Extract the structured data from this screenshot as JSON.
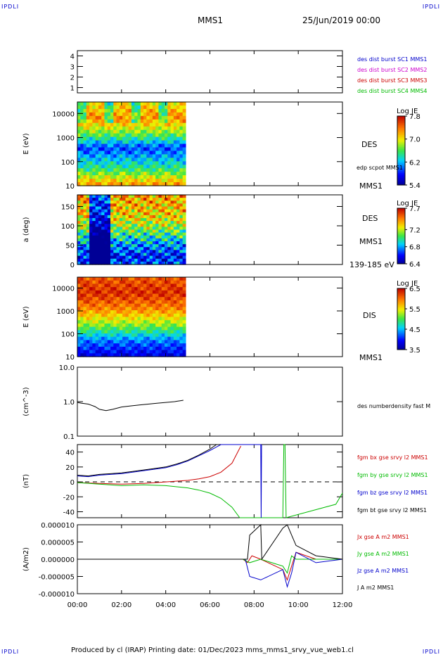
{
  "corner_label": "IPDLI",
  "header": {
    "spacecraft": "MMS1",
    "date": "25/Jun/2019 00:00"
  },
  "footer": {
    "text": "Produced by cl (IRAP)   Printing date: 01/Dec/2023   mms_mms1_srvy_vue_web1.cl"
  },
  "colors": {
    "blue": "#0000cc",
    "magenta": "#cc00cc",
    "red": "#cc0000",
    "green": "#00bb00",
    "black": "#000000"
  },
  "chart_data": [
    {
      "type": "line",
      "title": "spacecraft legend",
      "ylim": [
        0.5,
        4.5
      ],
      "yticks": [
        "1",
        "2",
        "3",
        "4"
      ],
      "legend": [
        {
          "name": "des dist burst SC1 MMS1",
          "color": "#0000cc"
        },
        {
          "name": "des dist burst SC2 MMS2",
          "color": "#cc00cc"
        },
        {
          "name": "des dist burst SC3 MMS3",
          "color": "#cc0000"
        },
        {
          "name": "des dist burst SC4 MMS4",
          "color": "#00bb00"
        }
      ]
    },
    {
      "type": "heatmap",
      "ylabel": "E (eV)",
      "yscale": "log",
      "ylim": [
        10,
        30000
      ],
      "yticks": [
        "10",
        "100",
        "1000",
        "10000"
      ],
      "right_labels": [
        "DES",
        "edp scpot MMS1",
        "MMS1"
      ],
      "colorbar": {
        "title": "Log JE",
        "ticks": [
          "7.8",
          "7.0",
          "6.2",
          "5.4"
        ]
      },
      "data_extent_hours": [
        0,
        4.9
      ]
    },
    {
      "type": "heatmap",
      "ylabel": "a (deg)",
      "ylim": [
        0,
        180
      ],
      "yticks": [
        "0",
        "50",
        "100",
        "150"
      ],
      "right_labels": [
        "DES",
        "MMS1",
        "139-185 eV"
      ],
      "colorbar": {
        "title": "Log JE",
        "ticks": [
          "7.7",
          "7.2",
          "6.8",
          "6.4"
        ]
      },
      "data_extent_hours": [
        0,
        4.9
      ]
    },
    {
      "type": "heatmap",
      "ylabel": "E (eV)",
      "yscale": "log",
      "ylim": [
        10,
        30000
      ],
      "yticks": [
        "10",
        "100",
        "1000",
        "10000"
      ],
      "right_labels": [
        "DIS",
        "MMS1"
      ],
      "colorbar": {
        "title": "Log JE",
        "ticks": [
          "6.5",
          "5.5",
          "4.5",
          "3.5"
        ]
      },
      "data_extent_hours": [
        0,
        4.9
      ]
    },
    {
      "type": "line",
      "ylabel": "(cm^-3)",
      "yscale": "log",
      "ylim": [
        0.1,
        10
      ],
      "yticks": [
        "0.1",
        "1.0",
        "10.0"
      ],
      "series": [
        {
          "name": "des numberdensity fast M",
          "color": "#000000",
          "x": [
            0.0,
            0.2,
            0.5,
            0.8,
            1.0,
            1.3,
            1.6,
            2.0,
            2.4,
            2.8,
            3.2,
            3.6,
            4.0,
            4.4,
            4.8
          ],
          "y": [
            0.95,
            0.9,
            0.85,
            0.72,
            0.6,
            0.55,
            0.6,
            0.7,
            0.75,
            0.8,
            0.85,
            0.9,
            0.95,
            1.0,
            1.1
          ]
        }
      ]
    },
    {
      "type": "line",
      "ylabel": "(nT)",
      "ylim": [
        -48,
        50
      ],
      "yticks": [
        "-40",
        "-20",
        "0",
        "20",
        "40"
      ],
      "series": [
        {
          "name": "fgm bx gse srvy l2 MMS1",
          "color": "#cc0000",
          "x": [
            0,
            1,
            2,
            3,
            4,
            5,
            5.5,
            6,
            6.5,
            7,
            7.4
          ],
          "y": [
            -1,
            -2,
            -3,
            -2,
            0,
            2,
            4,
            7,
            13,
            25,
            48
          ]
        },
        {
          "name": "fgm by gse srvy l2 MMS1",
          "color": "#00bb00",
          "x": [
            0,
            1,
            2,
            3,
            4,
            5,
            5.5,
            6,
            6.5,
            7,
            7.35,
            9.3,
            9.35,
            9.4,
            9.45,
            11.7,
            12
          ],
          "y": [
            -1,
            -3,
            -5,
            -4,
            -5,
            -8,
            -11,
            -15,
            -22,
            -34,
            -48,
            -48,
            50,
            50,
            -48,
            -30,
            -15
          ]
        },
        {
          "name": "fgm bz gse srvy l2 MMS1",
          "color": "#0000cc",
          "x": [
            0,
            0.5,
            1,
            1.5,
            2,
            2.5,
            3,
            3.5,
            4,
            4.5,
            5,
            5.5,
            6,
            6.5,
            8.3,
            8.32,
            8.34
          ],
          "y": [
            8,
            7,
            9,
            10,
            11,
            13,
            15,
            17,
            19,
            23,
            28,
            35,
            42,
            50,
            50,
            -48,
            50
          ]
        },
        {
          "name": "fgm bt gse srvy l2 MMS1",
          "color": "#000000",
          "x": [
            0,
            0.5,
            1,
            1.5,
            2,
            2.5,
            3,
            3.5,
            4,
            4.5,
            5,
            5.5,
            6,
            6.3
          ],
          "y": [
            9,
            8,
            10,
            11,
            12,
            14,
            16,
            18,
            20,
            24,
            29,
            36,
            44,
            50
          ]
        }
      ]
    },
    {
      "type": "line",
      "ylabel": "(A/m2)",
      "ylim": [
        -1e-05,
        1e-05
      ],
      "yticks": [
        "-0.000010",
        "-0.000005",
        "0.000000",
        "0.000005",
        "0.000010"
      ],
      "series": [
        {
          "name": "Jx gse A m2 MMS1",
          "color": "#cc0000",
          "x": [
            0,
            7.5,
            7.7,
            7.9,
            8.3,
            9.3,
            9.5,
            9.7,
            9.9,
            10.8,
            12
          ],
          "y": [
            0,
            0,
            -1e-06,
            1e-06,
            0,
            -3e-06,
            -6e-06,
            -2e-06,
            2e-06,
            0,
            0
          ]
        },
        {
          "name": "Jy gse A m2 MMS1",
          "color": "#00bb00",
          "x": [
            0,
            7.5,
            7.8,
            8.3,
            9.3,
            9.5,
            9.7,
            9.9,
            10.8,
            12
          ],
          "y": [
            0,
            0,
            -1e-06,
            0,
            -2e-06,
            -4e-06,
            1e-06,
            0,
            0,
            0
          ]
        },
        {
          "name": "Jz gse A m2 MMS1",
          "color": "#0000cc",
          "x": [
            0,
            7.6,
            7.8,
            8.3,
            9.3,
            9.5,
            9.7,
            9.9,
            10.8,
            12
          ],
          "y": [
            0,
            0,
            -5e-06,
            -6e-06,
            -3e-06,
            -8e-06,
            -4e-06,
            2e-06,
            -1e-06,
            0
          ]
        },
        {
          "name": "J A m2 MMS1",
          "color": "#000000",
          "x": [
            0,
            7.7,
            7.8,
            8.3,
            8.35,
            9.3,
            9.5,
            9.7,
            9.9,
            10.8,
            12
          ],
          "y": [
            0,
            0,
            7e-06,
            1e-05,
            0,
            9e-06,
            1e-05,
            7e-06,
            4e-06,
            1e-06,
            0
          ]
        }
      ]
    }
  ],
  "time_axis": {
    "ticks": [
      "00:00",
      "02:00",
      "04:00",
      "06:00",
      "08:00",
      "10:00",
      "12:00"
    ],
    "range_hours": [
      0,
      12
    ]
  }
}
